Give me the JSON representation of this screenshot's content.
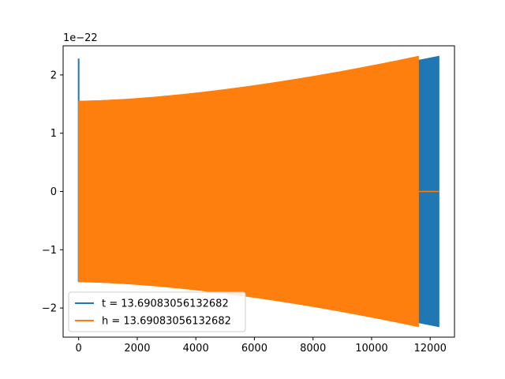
{
  "chart_data": {
    "type": "line",
    "title": "",
    "xlabel": "",
    "ylabel": "",
    "offset_text": "1e−22",
    "xlim": [
      -530,
      12830
    ],
    "ylim": [
      -2.5,
      2.5
    ],
    "x_ticks": [
      0,
      2000,
      4000,
      6000,
      8000,
      10000,
      12000
    ],
    "x_tick_labels": [
      "0",
      "2000",
      "4000",
      "6000",
      "8000",
      "10000",
      "12000"
    ],
    "y_ticks": [
      -2,
      -1,
      0,
      1,
      2
    ],
    "y_tick_labels": [
      "−2",
      "−1",
      "0",
      "1",
      "2"
    ],
    "grid": false,
    "legend_position": "lower-left",
    "series": [
      {
        "name": "t = 13.69083056132682",
        "color": "#1f77b4",
        "x_range": [
          0,
          12300
        ],
        "envelope_start": 1.55,
        "envelope_end": 2.32,
        "initial_spike": 2.28
      },
      {
        "name": "h = 13.69083056132682",
        "color": "#ff7f0e",
        "x_range": [
          0,
          11600
        ],
        "envelope_start": 1.55,
        "envelope_end": 2.32,
        "flat_after": [
          11600,
          12300
        ]
      }
    ]
  }
}
